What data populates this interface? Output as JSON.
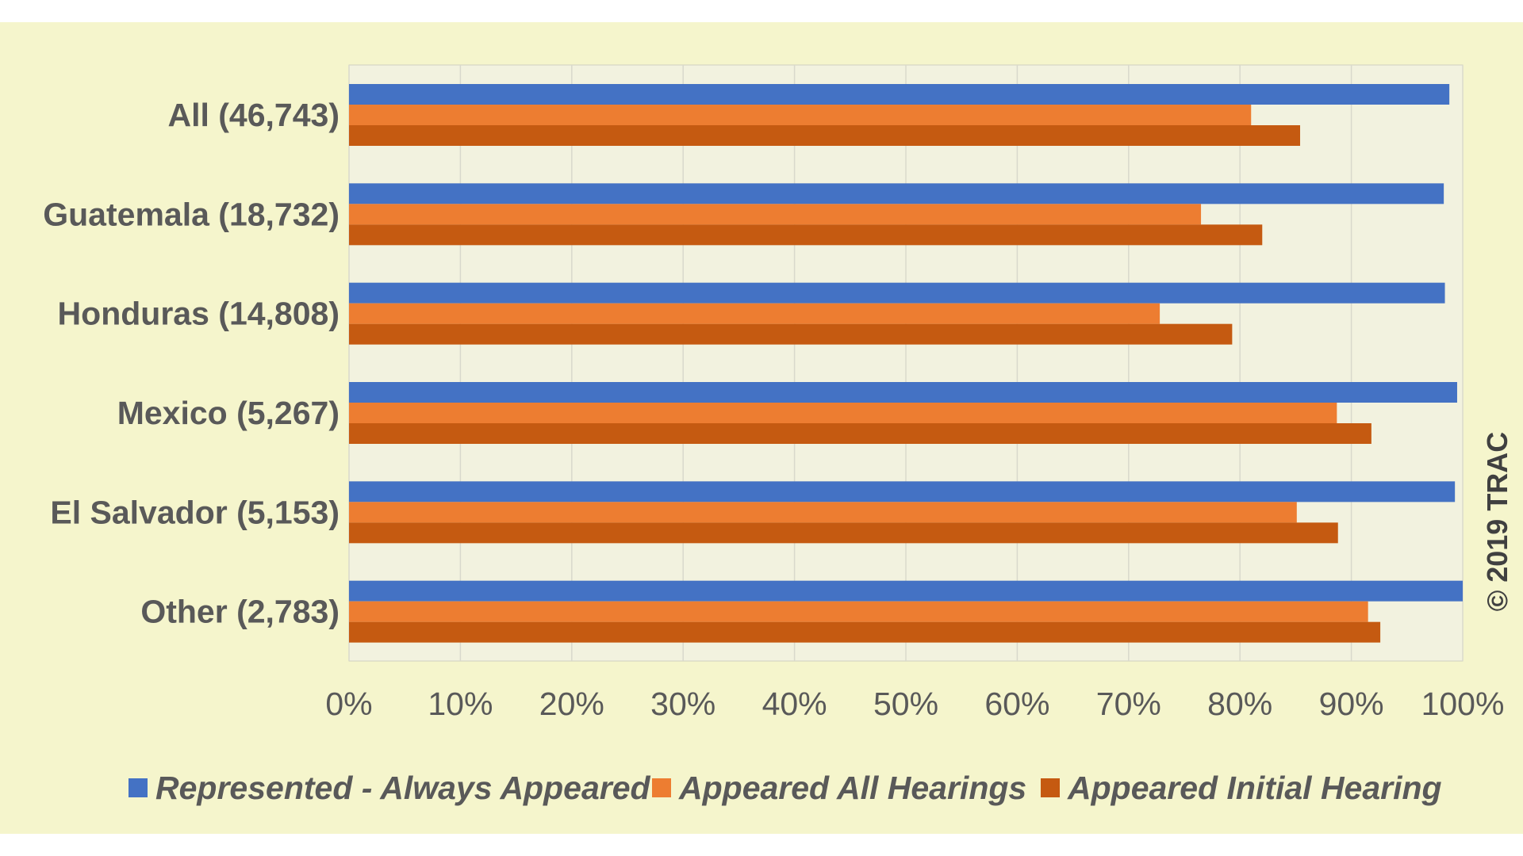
{
  "chart_data": {
    "type": "bar",
    "orientation": "horizontal",
    "categories": [
      "All (46,743)",
      "Guatemala (18,732)",
      "Honduras (14,808)",
      "Mexico (5,267)",
      "El Salvador (5,153)",
      "Other (2,783)"
    ],
    "series": [
      {
        "name": "Represented - Always Appeared",
        "color": "#4472c4",
        "values": [
          98.8,
          98.3,
          98.4,
          99.5,
          99.3,
          100.0
        ]
      },
      {
        "name": "Appeared All Hearings",
        "color": "#ed7d31",
        "values": [
          81.0,
          76.5,
          72.8,
          88.7,
          85.1,
          91.5
        ]
      },
      {
        "name": "Appeared Initial Hearing",
        "color": "#c55a11",
        "values": [
          85.4,
          82.0,
          79.3,
          91.8,
          88.8,
          92.6
        ]
      }
    ],
    "xticks": [
      "0%",
      "10%",
      "20%",
      "30%",
      "40%",
      "50%",
      "60%",
      "70%",
      "80%",
      "90%",
      "100%"
    ],
    "xlim": [
      0,
      100
    ],
    "grid": true,
    "legend_position": "bottom",
    "plot_background": "#f2f2df",
    "page_background": "#f5f5cc"
  },
  "copyright": "© 2019 TRAC"
}
